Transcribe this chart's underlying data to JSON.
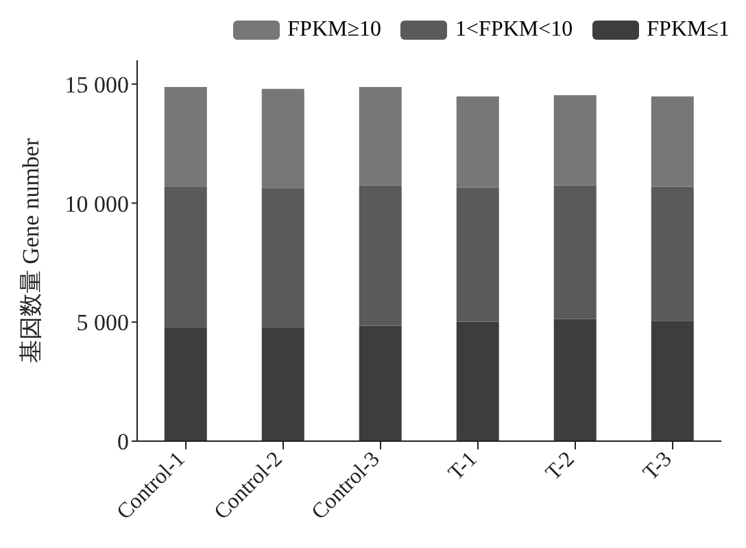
{
  "chart_data": {
    "type": "bar",
    "stacked": true,
    "ylabel": "基因数量 Gene number",
    "categories": [
      "Control-1",
      "Control-2",
      "Control-3",
      "T-1",
      "T-2",
      "T-3"
    ],
    "series": [
      {
        "name": "FPKM≤1",
        "color": "#3d3d3d",
        "values": [
          4750,
          4750,
          4850,
          5020,
          5140,
          5060
        ]
      },
      {
        "name": "1<FPKM<10",
        "color": "#5a5a5a",
        "values": [
          5950,
          5890,
          5890,
          5640,
          5600,
          5620
        ]
      },
      {
        "name": "FPKM≥10",
        "color": "#777777",
        "values": [
          4180,
          4160,
          4140,
          3820,
          3790,
          3800
        ]
      }
    ],
    "ylim": [
      0,
      16000
    ],
    "yticks": [
      0,
      {
        "value": 5000,
        "label": "5 000"
      },
      {
        "value": 10000,
        "label": "10 000"
      },
      {
        "value": 15000,
        "label": "15 000"
      }
    ],
    "grid": false,
    "legend": "top"
  }
}
